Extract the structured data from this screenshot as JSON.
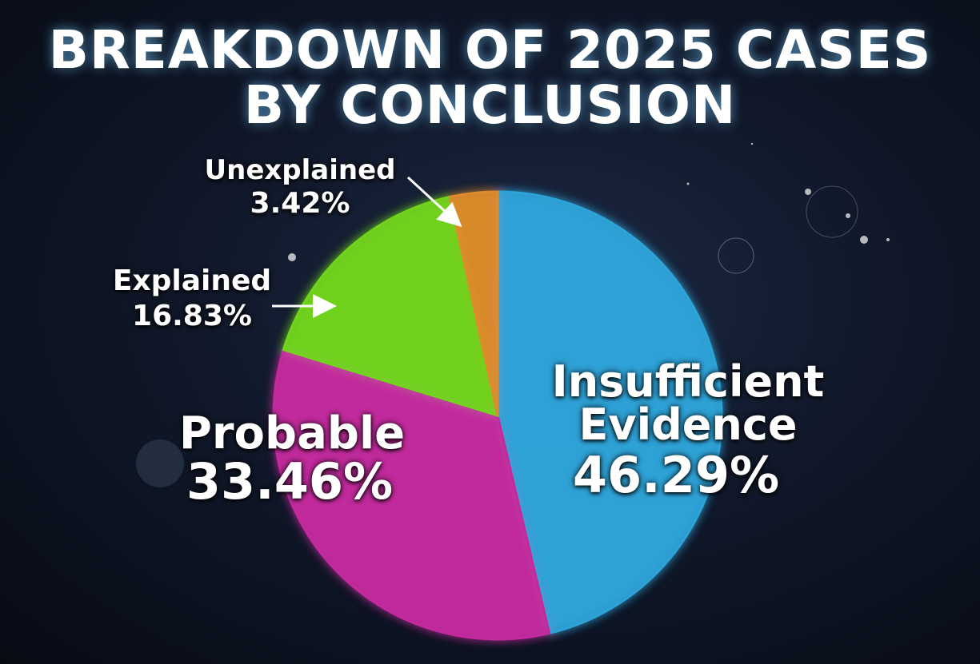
{
  "chart_data": {
    "type": "pie",
    "title": "BREAKDOWN OF 2025 CASES BY CONCLUSION",
    "categories": [
      "Insufficient Evidence",
      "Probable",
      "Explained",
      "Unexplained"
    ],
    "values": [
      46.29,
      33.46,
      16.83,
      3.42
    ],
    "value_labels": [
      "46.29%",
      "33.46%",
      "16.83%",
      "3.42%"
    ],
    "colors": [
      "#2fa3d8",
      "#c42a9e",
      "#72d41c",
      "#dc8c2c"
    ]
  }
}
